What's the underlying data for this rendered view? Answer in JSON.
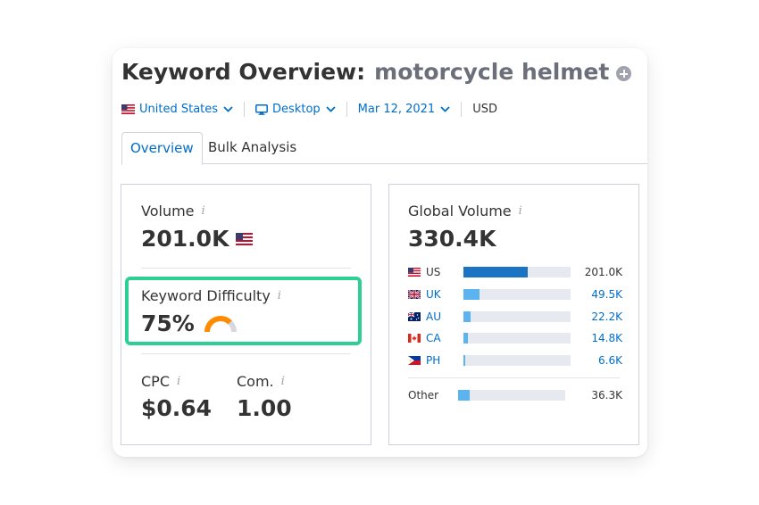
{
  "header": {
    "title": "Keyword Overview:",
    "keyword": "motorcycle helmet"
  },
  "filters": {
    "country": "United States",
    "device": "Desktop",
    "date": "Mar 12, 2021",
    "currency": "USD"
  },
  "tabs": [
    {
      "label": "Overview",
      "active": true
    },
    {
      "label": "Bulk Analysis",
      "active": false
    }
  ],
  "metrics": {
    "volume_label": "Volume",
    "volume_value": "201.0K",
    "kd_label": "Keyword Difficulty",
    "kd_value": "75%",
    "kd_percent": 75,
    "cpc_label": "CPC",
    "cpc_value": "$0.64",
    "com_label": "Com.",
    "com_value": "1.00",
    "info_icon": "i"
  },
  "global": {
    "label": "Global Volume",
    "value": "330.4K",
    "countries": [
      {
        "code": "US",
        "value": "201.0K",
        "share": 0.6,
        "link": false,
        "flag": "us-flag"
      },
      {
        "code": "UK",
        "value": "49.5K",
        "share": 0.15,
        "link": true,
        "flag": "uk-flag"
      },
      {
        "code": "AU",
        "value": "22.2K",
        "share": 0.07,
        "link": true,
        "flag": "au-flag"
      },
      {
        "code": "CA",
        "value": "14.8K",
        "share": 0.04,
        "link": true,
        "flag": "ca-flag"
      },
      {
        "code": "PH",
        "value": "6.6K",
        "share": 0.02,
        "link": true,
        "flag": "ph-flag"
      }
    ],
    "other": {
      "label": "Other",
      "value": "36.3K",
      "share": 0.11
    }
  },
  "colors": {
    "accent_blue": "#006dca",
    "bar_dark": "#1a74c3",
    "bar_light": "#5bb3f0",
    "kd_orange": "#ff8c00",
    "highlight_green": "#2ecf94"
  }
}
